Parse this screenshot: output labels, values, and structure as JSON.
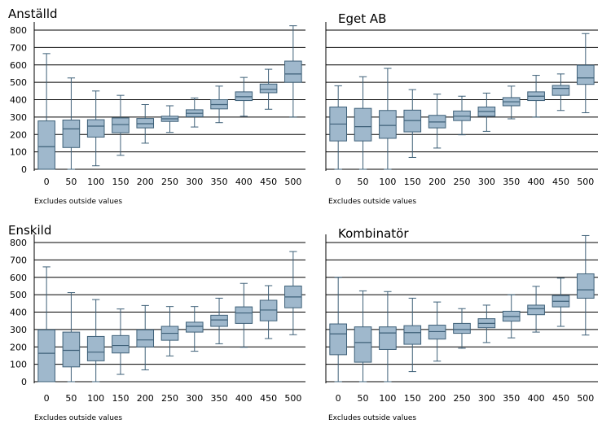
{
  "chart_data": [
    {
      "type": "box",
      "title": "Anställd",
      "note": "Excludes outside values",
      "categories": [
        "0",
        "50",
        "100",
        "150",
        "200",
        "250",
        "300",
        "350",
        "400",
        "450",
        "500"
      ],
      "yticks": [
        0,
        100,
        200,
        300,
        400,
        500,
        600,
        700,
        800
      ],
      "ylim": [
        0,
        830
      ],
      "boxes": [
        {
          "min": 0,
          "q1": 0,
          "median": 130,
          "q3": 278,
          "max": 665
        },
        {
          "min": 0,
          "q1": 125,
          "median": 232,
          "q3": 283,
          "max": 525
        },
        {
          "min": 20,
          "q1": 185,
          "median": 248,
          "q3": 285,
          "max": 450
        },
        {
          "min": 80,
          "q1": 210,
          "median": 257,
          "q3": 295,
          "max": 425
        },
        {
          "min": 150,
          "q1": 238,
          "median": 262,
          "q3": 292,
          "max": 372
        },
        {
          "min": 212,
          "q1": 275,
          "median": 290,
          "q3": 305,
          "max": 365
        },
        {
          "min": 243,
          "q1": 302,
          "median": 322,
          "q3": 342,
          "max": 410
        },
        {
          "min": 268,
          "q1": 347,
          "median": 372,
          "q3": 400,
          "max": 478
        },
        {
          "min": 305,
          "q1": 395,
          "median": 417,
          "q3": 445,
          "max": 528
        },
        {
          "min": 345,
          "q1": 440,
          "median": 460,
          "q3": 490,
          "max": 575
        },
        {
          "min": 300,
          "q1": 500,
          "median": 548,
          "q3": 622,
          "max": 825
        }
      ]
    },
    {
      "type": "box",
      "title": "Eget AB",
      "note": "Excludes outside values",
      "categories": [
        "0",
        "50",
        "100",
        "150",
        "200",
        "250",
        "300",
        "350",
        "400",
        "450",
        "500"
      ],
      "yticks": [
        0,
        100,
        200,
        300,
        400,
        500,
        600,
        700,
        800
      ],
      "ylim": [
        0,
        830
      ],
      "boxes": [
        {
          "min": 0,
          "q1": 163,
          "median": 260,
          "q3": 358,
          "max": 480
        },
        {
          "min": 0,
          "q1": 163,
          "median": 245,
          "q3": 350,
          "max": 532
        },
        {
          "min": 0,
          "q1": 178,
          "median": 252,
          "q3": 338,
          "max": 580
        },
        {
          "min": 68,
          "q1": 215,
          "median": 280,
          "q3": 340,
          "max": 458
        },
        {
          "min": 122,
          "q1": 238,
          "median": 272,
          "q3": 310,
          "max": 432
        },
        {
          "min": 198,
          "q1": 280,
          "median": 305,
          "q3": 335,
          "max": 420
        },
        {
          "min": 218,
          "q1": 305,
          "median": 332,
          "q3": 358,
          "max": 438
        },
        {
          "min": 290,
          "q1": 365,
          "median": 388,
          "q3": 412,
          "max": 478
        },
        {
          "min": 300,
          "q1": 395,
          "median": 420,
          "q3": 445,
          "max": 540
        },
        {
          "min": 338,
          "q1": 425,
          "median": 465,
          "q3": 482,
          "max": 548
        },
        {
          "min": 325,
          "q1": 488,
          "median": 525,
          "q3": 598,
          "max": 780
        }
      ]
    },
    {
      "type": "box",
      "title": "Enskild",
      "note": "Excludes outside values",
      "categories": [
        "0",
        "50",
        "100",
        "150",
        "200",
        "250",
        "300",
        "350",
        "400",
        "450",
        "500"
      ],
      "yticks": [
        0,
        100,
        200,
        300,
        400,
        500,
        600,
        700,
        800
      ],
      "ylim": [
        0,
        830
      ],
      "boxes": [
        {
          "min": 0,
          "q1": 0,
          "median": 163,
          "q3": 298,
          "max": 660
        },
        {
          "min": 0,
          "q1": 85,
          "median": 180,
          "q3": 285,
          "max": 512
        },
        {
          "min": 0,
          "q1": 120,
          "median": 170,
          "q3": 260,
          "max": 472
        },
        {
          "min": 42,
          "q1": 165,
          "median": 208,
          "q3": 265,
          "max": 418
        },
        {
          "min": 68,
          "q1": 200,
          "median": 240,
          "q3": 298,
          "max": 438
        },
        {
          "min": 148,
          "q1": 238,
          "median": 278,
          "q3": 318,
          "max": 432
        },
        {
          "min": 175,
          "q1": 285,
          "median": 318,
          "q3": 342,
          "max": 432
        },
        {
          "min": 218,
          "q1": 318,
          "median": 355,
          "q3": 382,
          "max": 480
        },
        {
          "min": 198,
          "q1": 335,
          "median": 395,
          "q3": 430,
          "max": 565
        },
        {
          "min": 248,
          "q1": 350,
          "median": 412,
          "q3": 468,
          "max": 552
        },
        {
          "min": 270,
          "q1": 425,
          "median": 487,
          "q3": 550,
          "max": 748
        }
      ]
    },
    {
      "type": "box",
      "title": "Kombinatör",
      "note": "Excludes outside values",
      "categories": [
        "0",
        "50",
        "100",
        "150",
        "200",
        "250",
        "300",
        "350",
        "400",
        "450",
        "500"
      ],
      "yticks": [
        0,
        100,
        200,
        300,
        400,
        500,
        600,
        700,
        800
      ],
      "ylim": [
        0,
        830
      ],
      "boxes": [
        {
          "min": 0,
          "q1": 155,
          "median": 275,
          "q3": 332,
          "max": 600
        },
        {
          "min": 0,
          "q1": 112,
          "median": 225,
          "q3": 315,
          "max": 522
        },
        {
          "min": 0,
          "q1": 185,
          "median": 280,
          "q3": 315,
          "max": 518
        },
        {
          "min": 58,
          "q1": 215,
          "median": 282,
          "q3": 322,
          "max": 480
        },
        {
          "min": 118,
          "q1": 245,
          "median": 288,
          "q3": 325,
          "max": 458
        },
        {
          "min": 192,
          "q1": 278,
          "median": 300,
          "q3": 335,
          "max": 420
        },
        {
          "min": 225,
          "q1": 310,
          "median": 335,
          "q3": 362,
          "max": 440
        },
        {
          "min": 252,
          "q1": 348,
          "median": 375,
          "q3": 405,
          "max": 500
        },
        {
          "min": 285,
          "q1": 385,
          "median": 420,
          "q3": 440,
          "max": 548
        },
        {
          "min": 318,
          "q1": 430,
          "median": 462,
          "q3": 495,
          "max": 595
        },
        {
          "min": 268,
          "q1": 480,
          "median": 528,
          "q3": 620,
          "max": 840
        }
      ]
    }
  ],
  "colors": {
    "box_fill": "#9fb8cc",
    "box_stroke": "#3e6078",
    "grid": "#000000",
    "axis_text": "#000000"
  }
}
